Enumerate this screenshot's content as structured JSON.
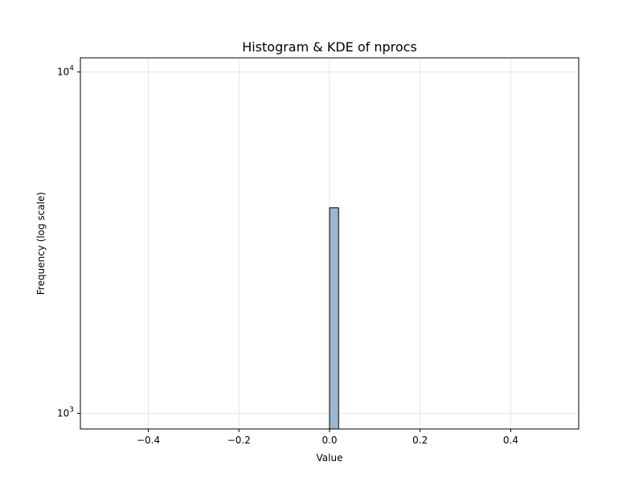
{
  "chart_data": {
    "type": "bar",
    "title": "Histogram & KDE of nprocs",
    "xlabel": "Value",
    "ylabel": "Frequency (log scale)",
    "xlim": [
      -0.55,
      0.55
    ],
    "ylim": [
      900,
      11000
    ],
    "yscale": "log",
    "grid": true,
    "bar_color": "#9cb6d1",
    "bar_edge_color": "#000000",
    "grid_color": "#e6e6e6",
    "x_ticks": [
      {
        "value": -0.4,
        "label": "−0.4"
      },
      {
        "value": -0.2,
        "label": "−0.2"
      },
      {
        "value": 0.0,
        "label": "0.0"
      },
      {
        "value": 0.2,
        "label": "0.2"
      },
      {
        "value": 0.4,
        "label": "0.4"
      }
    ],
    "y_ticks": [
      {
        "value": 1000,
        "base": "10",
        "exp": "3"
      },
      {
        "value": 10000,
        "base": "10",
        "exp": "4"
      }
    ],
    "bins": [
      {
        "x_start": 0.0,
        "x_end": 0.02,
        "count": 4000
      }
    ]
  }
}
